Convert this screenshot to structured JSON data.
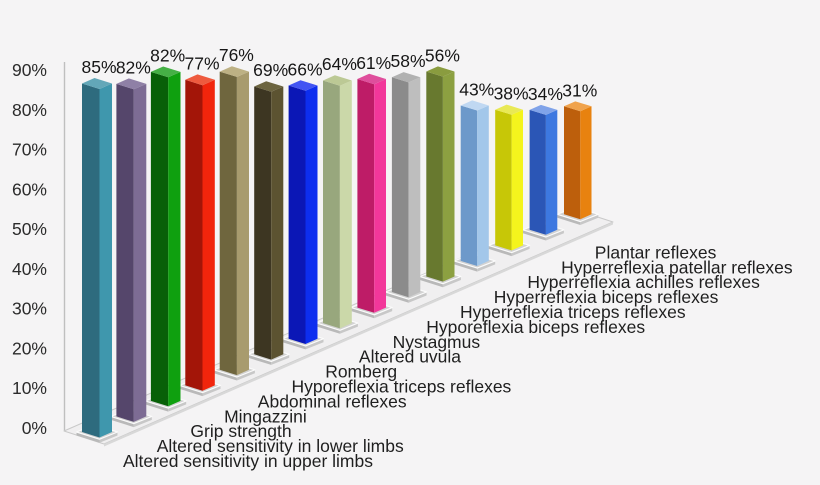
{
  "chart_data": {
    "type": "bar",
    "projection": "3d-depth-row",
    "title": "",
    "subtitle": "",
    "xlabel": "",
    "ylabel": "",
    "legend": "none",
    "grid": "off",
    "background": "#F5F4F5",
    "text_color": "#1C1C1C",
    "axis_line_color": "#BFBFBF",
    "categories": [
      "Altered sensitivity in upper limbs",
      "Altered sensitivity in lower limbs",
      "Grip strength",
      "Mingazzini",
      "Abdominal reflexes",
      "Hyporeflexia triceps reflexes",
      "Romberg",
      "Altered uvula",
      "Nystagmus",
      "Hyporeflexia biceps reflexes",
      "Hyperreflexia triceps reflexes",
      "Hyperreflexia biceps reflexes",
      "Hyperreflexia achilles reflexes",
      "Hyperreflexia patellar reflexes",
      "Plantar reflexes"
    ],
    "values": [
      85,
      82,
      82,
      77,
      76,
      69,
      66,
      64,
      61,
      58,
      56,
      43,
      38,
      34,
      31
    ],
    "value_labels": [
      "85%",
      "82%",
      "82%",
      "77%",
      "76%",
      "69%",
      "66%",
      "64%",
      "61%",
      "58%",
      "56%",
      "43%",
      "38%",
      "34%",
      "31%"
    ],
    "bar_colors": [
      {
        "name": "teal",
        "face_dark": "#2E6B7E",
        "face_light": "#3F97AD",
        "top": "#63A7B8"
      },
      {
        "name": "purple",
        "face_dark": "#55466B",
        "face_light": "#7D6C94",
        "top": "#8F80A6"
      },
      {
        "name": "green",
        "face_dark": "#086008",
        "face_light": "#0FA00F",
        "top": "#45B045"
      },
      {
        "name": "red",
        "face_dark": "#A31508",
        "face_light": "#F1250C",
        "top": "#EE5A3E"
      },
      {
        "name": "khaki",
        "face_dark": "#6F663E",
        "face_light": "#A89B6E",
        "top": "#BDB184"
      },
      {
        "name": "dark-olive",
        "face_dark": "#3D3622",
        "face_light": "#5C5331",
        "top": "#6C6440"
      },
      {
        "name": "blue",
        "face_dark": "#0B17B6",
        "face_light": "#0D2EEF",
        "top": "#4254F2"
      },
      {
        "name": "sage",
        "face_dark": "#98A77D",
        "face_light": "#CBD8A9",
        "top": "#BCC995"
      },
      {
        "name": "magenta",
        "face_dark": "#BE1C67",
        "face_light": "#F2379A",
        "top": "#DF4E9C"
      },
      {
        "name": "silver",
        "face_dark": "#8B8B8B",
        "face_light": "#BEBEBE",
        "top": "#B1B1B1"
      },
      {
        "name": "olive-green",
        "face_dark": "#68792F",
        "face_light": "#8CA041",
        "top": "#8A9C3F"
      },
      {
        "name": "light-blue",
        "face_dark": "#6D99CA",
        "face_light": "#A3C7EA",
        "top": "#C0D8F2"
      },
      {
        "name": "yellow",
        "face_dark": "#C7C707",
        "face_light": "#F4F41D",
        "top": "#E9E955"
      },
      {
        "name": "medium-blue",
        "face_dark": "#2B56B6",
        "face_light": "#3D78E0",
        "top": "#80A3E9"
      },
      {
        "name": "orange",
        "face_dark": "#BD5F0C",
        "face_light": "#E8820F",
        "top": "#F0A34D"
      }
    ],
    "yaxis": {
      "min": 0,
      "max": 90,
      "step": 10,
      "tick_labels": [
        "0%",
        "10%",
        "20%",
        "30%",
        "40%",
        "50%",
        "60%",
        "70%",
        "80%",
        "90%"
      ]
    },
    "floor": {
      "strip_fill": "#F0EFF0",
      "strip_stroke": "#C9C9C9",
      "strip_edge": "#D8D8D8",
      "tile_fill": "#D2D2D2",
      "tile_stroke": "#FBFBFB",
      "tile_bevel_left": "#B9B9B9",
      "tile_bevel_right": "#C8C8C8"
    }
  }
}
